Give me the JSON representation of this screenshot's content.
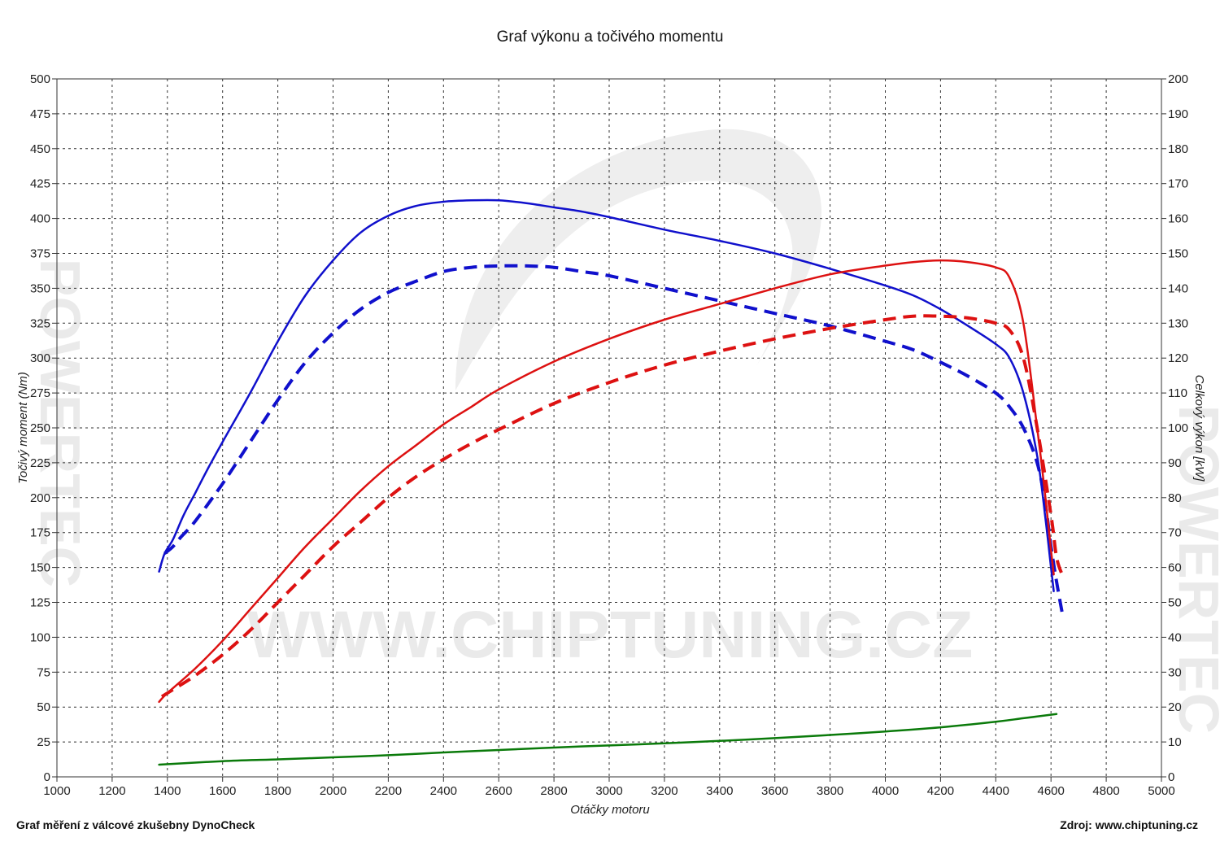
{
  "watermark": {
    "url_text": "WWW.CHIPTUNING.CZ",
    "side_text": "POWERTEC"
  },
  "footer": {
    "left": "Graf měření z válcové zkušebny DynoCheck",
    "right": "Zdroj: www.chiptuning.cz"
  },
  "chart_data": {
    "type": "line",
    "title": "Graf výkonu a točivého momentu",
    "xlabel": "Otáčky motoru",
    "ylabel_left": "Točivý moment (Nm)",
    "ylabel_right": "Celkový výkon [kW]",
    "xlim": [
      1000,
      5000
    ],
    "ylim_left": [
      0,
      500
    ],
    "ylim_right": [
      0,
      200
    ],
    "grid": true,
    "x_ticks": [
      1000,
      1200,
      1400,
      1600,
      1800,
      2000,
      2200,
      2400,
      2600,
      2800,
      3000,
      3200,
      3400,
      3600,
      3800,
      4000,
      4200,
      4400,
      4600,
      4800,
      5000
    ],
    "y_left_ticks": [
      0,
      25,
      50,
      75,
      100,
      125,
      150,
      175,
      200,
      225,
      250,
      275,
      300,
      325,
      350,
      375,
      400,
      425,
      450,
      475,
      500
    ],
    "y_right_ticks": [
      0,
      10,
      20,
      30,
      40,
      50,
      60,
      70,
      80,
      90,
      100,
      110,
      120,
      130,
      140,
      150,
      160,
      170,
      180,
      190,
      200
    ],
    "series": [
      {
        "axis": "left",
        "color": "#1010cc",
        "style": "solid",
        "points": [
          [
            1370,
            147
          ],
          [
            1390,
            160
          ],
          [
            1420,
            170
          ],
          [
            1460,
            188
          ],
          [
            1500,
            203
          ],
          [
            1550,
            222
          ],
          [
            1600,
            240
          ],
          [
            1700,
            275
          ],
          [
            1800,
            312
          ],
          [
            1900,
            345
          ],
          [
            2000,
            370
          ],
          [
            2100,
            390
          ],
          [
            2200,
            402
          ],
          [
            2300,
            409
          ],
          [
            2400,
            412
          ],
          [
            2500,
            413
          ],
          [
            2600,
            413
          ],
          [
            2700,
            411
          ],
          [
            2800,
            408
          ],
          [
            2900,
            405
          ],
          [
            3000,
            401
          ],
          [
            3200,
            392
          ],
          [
            3400,
            384
          ],
          [
            3600,
            375
          ],
          [
            3800,
            364
          ],
          [
            4000,
            352
          ],
          [
            4100,
            345
          ],
          [
            4200,
            335
          ],
          [
            4300,
            323
          ],
          [
            4400,
            310
          ],
          [
            4450,
            300
          ],
          [
            4500,
            275
          ],
          [
            4550,
            230
          ],
          [
            4580,
            185
          ],
          [
            4600,
            150
          ],
          [
            4610,
            133
          ]
        ]
      },
      {
        "axis": "left",
        "color": "#1010cc",
        "style": "dashed",
        "points": [
          [
            1390,
            160
          ],
          [
            1420,
            165
          ],
          [
            1450,
            172
          ],
          [
            1500,
            183
          ],
          [
            1600,
            210
          ],
          [
            1700,
            240
          ],
          [
            1800,
            270
          ],
          [
            1900,
            297
          ],
          [
            2000,
            318
          ],
          [
            2100,
            335
          ],
          [
            2200,
            347
          ],
          [
            2300,
            355
          ],
          [
            2400,
            362
          ],
          [
            2500,
            365
          ],
          [
            2600,
            366
          ],
          [
            2700,
            366
          ],
          [
            2800,
            365
          ],
          [
            2900,
            362
          ],
          [
            3000,
            359
          ],
          [
            3200,
            350
          ],
          [
            3400,
            341
          ],
          [
            3600,
            332
          ],
          [
            3800,
            323
          ],
          [
            4000,
            312
          ],
          [
            4100,
            306
          ],
          [
            4200,
            297
          ],
          [
            4300,
            287
          ],
          [
            4400,
            275
          ],
          [
            4450,
            265
          ],
          [
            4500,
            250
          ],
          [
            4550,
            225
          ],
          [
            4580,
            195
          ],
          [
            4600,
            165
          ],
          [
            4620,
            140
          ],
          [
            4640,
            118
          ]
        ]
      },
      {
        "axis": "right",
        "color": "#dd1111",
        "style": "solid",
        "points": [
          [
            1370,
            21.5
          ],
          [
            1400,
            24
          ],
          [
            1500,
            31
          ],
          [
            1600,
            39
          ],
          [
            1700,
            48
          ],
          [
            1800,
            57
          ],
          [
            1900,
            66
          ],
          [
            2000,
            74
          ],
          [
            2100,
            82
          ],
          [
            2200,
            89
          ],
          [
            2300,
            95
          ],
          [
            2400,
            101
          ],
          [
            2500,
            106
          ],
          [
            2600,
            111
          ],
          [
            2800,
            119
          ],
          [
            3000,
            125.5
          ],
          [
            3200,
            131
          ],
          [
            3400,
            135.5
          ],
          [
            3600,
            140
          ],
          [
            3800,
            144
          ],
          [
            4000,
            146.5
          ],
          [
            4100,
            147.5
          ],
          [
            4200,
            148
          ],
          [
            4300,
            147.5
          ],
          [
            4400,
            146
          ],
          [
            4450,
            143
          ],
          [
            4500,
            130
          ],
          [
            4550,
            100
          ],
          [
            4580,
            80
          ],
          [
            4600,
            65
          ],
          [
            4610,
            58
          ]
        ]
      },
      {
        "axis": "right",
        "color": "#dd1111",
        "style": "dashed",
        "points": [
          [
            1380,
            23
          ],
          [
            1420,
            25
          ],
          [
            1500,
            29
          ],
          [
            1600,
            35
          ],
          [
            1700,
            42
          ],
          [
            1800,
            50
          ],
          [
            1900,
            58
          ],
          [
            2000,
            66
          ],
          [
            2100,
            73
          ],
          [
            2200,
            80
          ],
          [
            2300,
            86
          ],
          [
            2400,
            91
          ],
          [
            2500,
            95.5
          ],
          [
            2600,
            99.5
          ],
          [
            2800,
            107
          ],
          [
            3000,
            113
          ],
          [
            3200,
            118
          ],
          [
            3400,
            122
          ],
          [
            3600,
            125.5
          ],
          [
            3800,
            128.5
          ],
          [
            4000,
            131
          ],
          [
            4100,
            132
          ],
          [
            4200,
            132
          ],
          [
            4300,
            131.5
          ],
          [
            4400,
            130
          ],
          [
            4450,
            128
          ],
          [
            4500,
            120
          ],
          [
            4550,
            100
          ],
          [
            4600,
            75
          ],
          [
            4620,
            63
          ],
          [
            4640,
            58
          ]
        ]
      },
      {
        "axis": "right",
        "color": "#0a7a0a",
        "style": "solid",
        "points": [
          [
            1370,
            3.5
          ],
          [
            1600,
            4.5
          ],
          [
            1800,
            5
          ],
          [
            2000,
            5.6
          ],
          [
            2200,
            6.2
          ],
          [
            2400,
            7
          ],
          [
            2600,
            7.7
          ],
          [
            2800,
            8.4
          ],
          [
            3000,
            9
          ],
          [
            3200,
            9.6
          ],
          [
            3400,
            10.3
          ],
          [
            3600,
            11.1
          ],
          [
            3800,
            12
          ],
          [
            4000,
            13
          ],
          [
            4200,
            14.2
          ],
          [
            4400,
            15.8
          ],
          [
            4500,
            16.8
          ],
          [
            4620,
            18
          ]
        ]
      }
    ]
  }
}
